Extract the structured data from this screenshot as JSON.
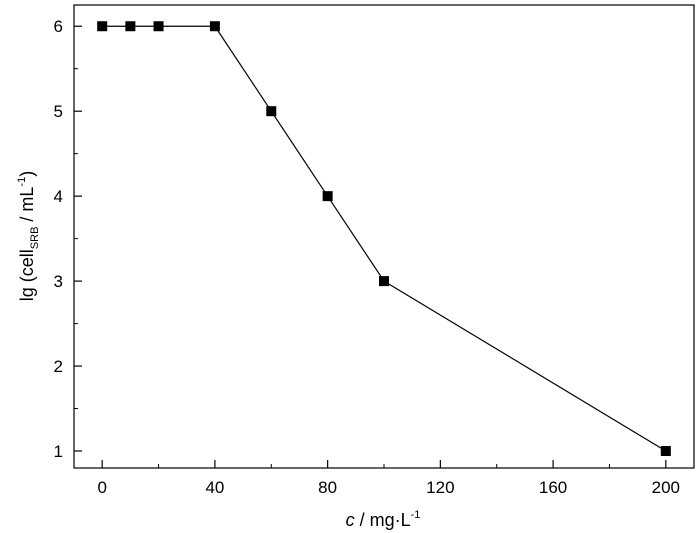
{
  "chart_data": {
    "type": "line",
    "title": "",
    "xlabel": {
      "italic": "c",
      "rest": " / mg·L",
      "sup": "-1"
    },
    "ylabel": {
      "pre": "lg (cell",
      "sub": "SRB",
      "mid": " / mL",
      "sup": "-1",
      "post": ")"
    },
    "xlim": [
      -10,
      210
    ],
    "ylim": [
      0.8,
      6.25
    ],
    "xticks": [
      0,
      40,
      80,
      120,
      160,
      200
    ],
    "yticks": [
      1,
      2,
      3,
      4,
      5,
      6
    ],
    "grid": false,
    "series": [
      {
        "x": [
          0,
          10,
          20,
          40,
          60,
          80,
          100,
          200
        ],
        "y": [
          6,
          6,
          6,
          6,
          5,
          4,
          3,
          1
        ],
        "marker": "square",
        "color": "#000000"
      }
    ]
  }
}
